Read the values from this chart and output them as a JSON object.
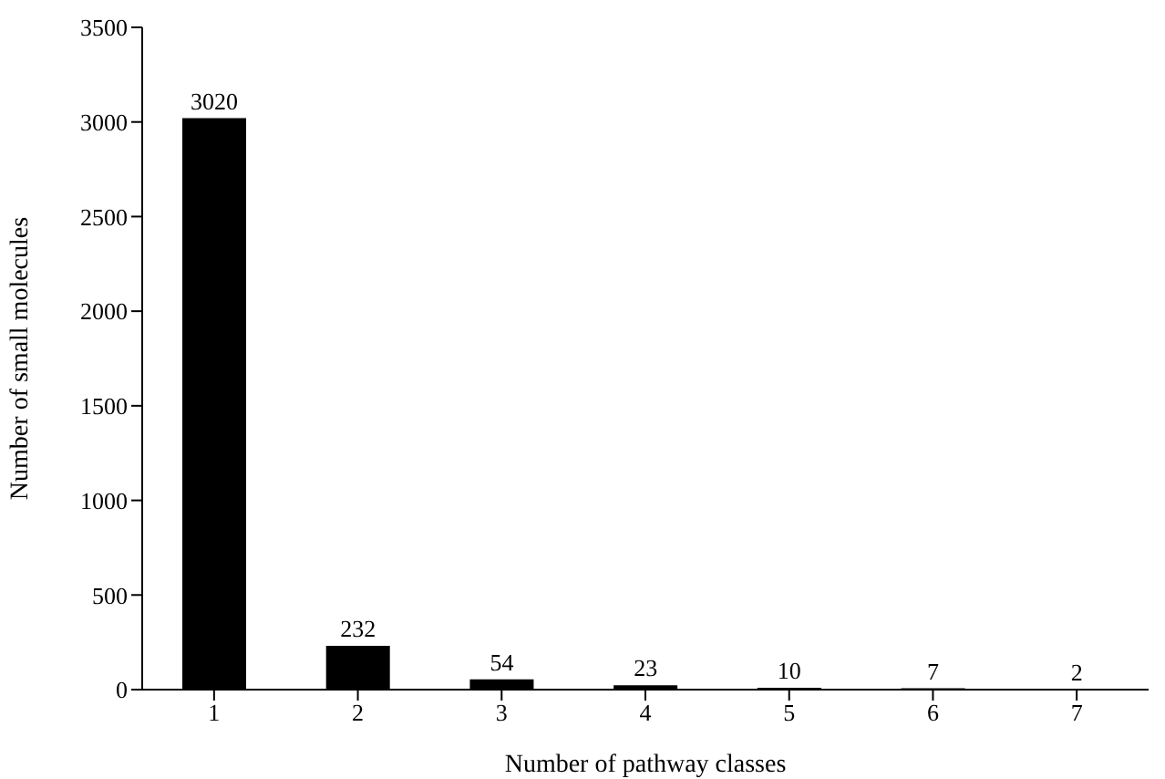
{
  "chart_data": {
    "type": "bar",
    "xlabel": "Number of pathway classes",
    "ylabel": "Number of small molecules",
    "categories": [
      "1",
      "2",
      "3",
      "4",
      "5",
      "6",
      "7"
    ],
    "values": [
      3020,
      232,
      54,
      23,
      10,
      7,
      2
    ],
    "color": "#000000",
    "ylim": [
      0,
      3500
    ],
    "yticks": [
      0,
      500,
      1000,
      1500,
      2000,
      2500,
      3000,
      3500
    ],
    "data_labels": true,
    "grid": false,
    "legend": false
  }
}
